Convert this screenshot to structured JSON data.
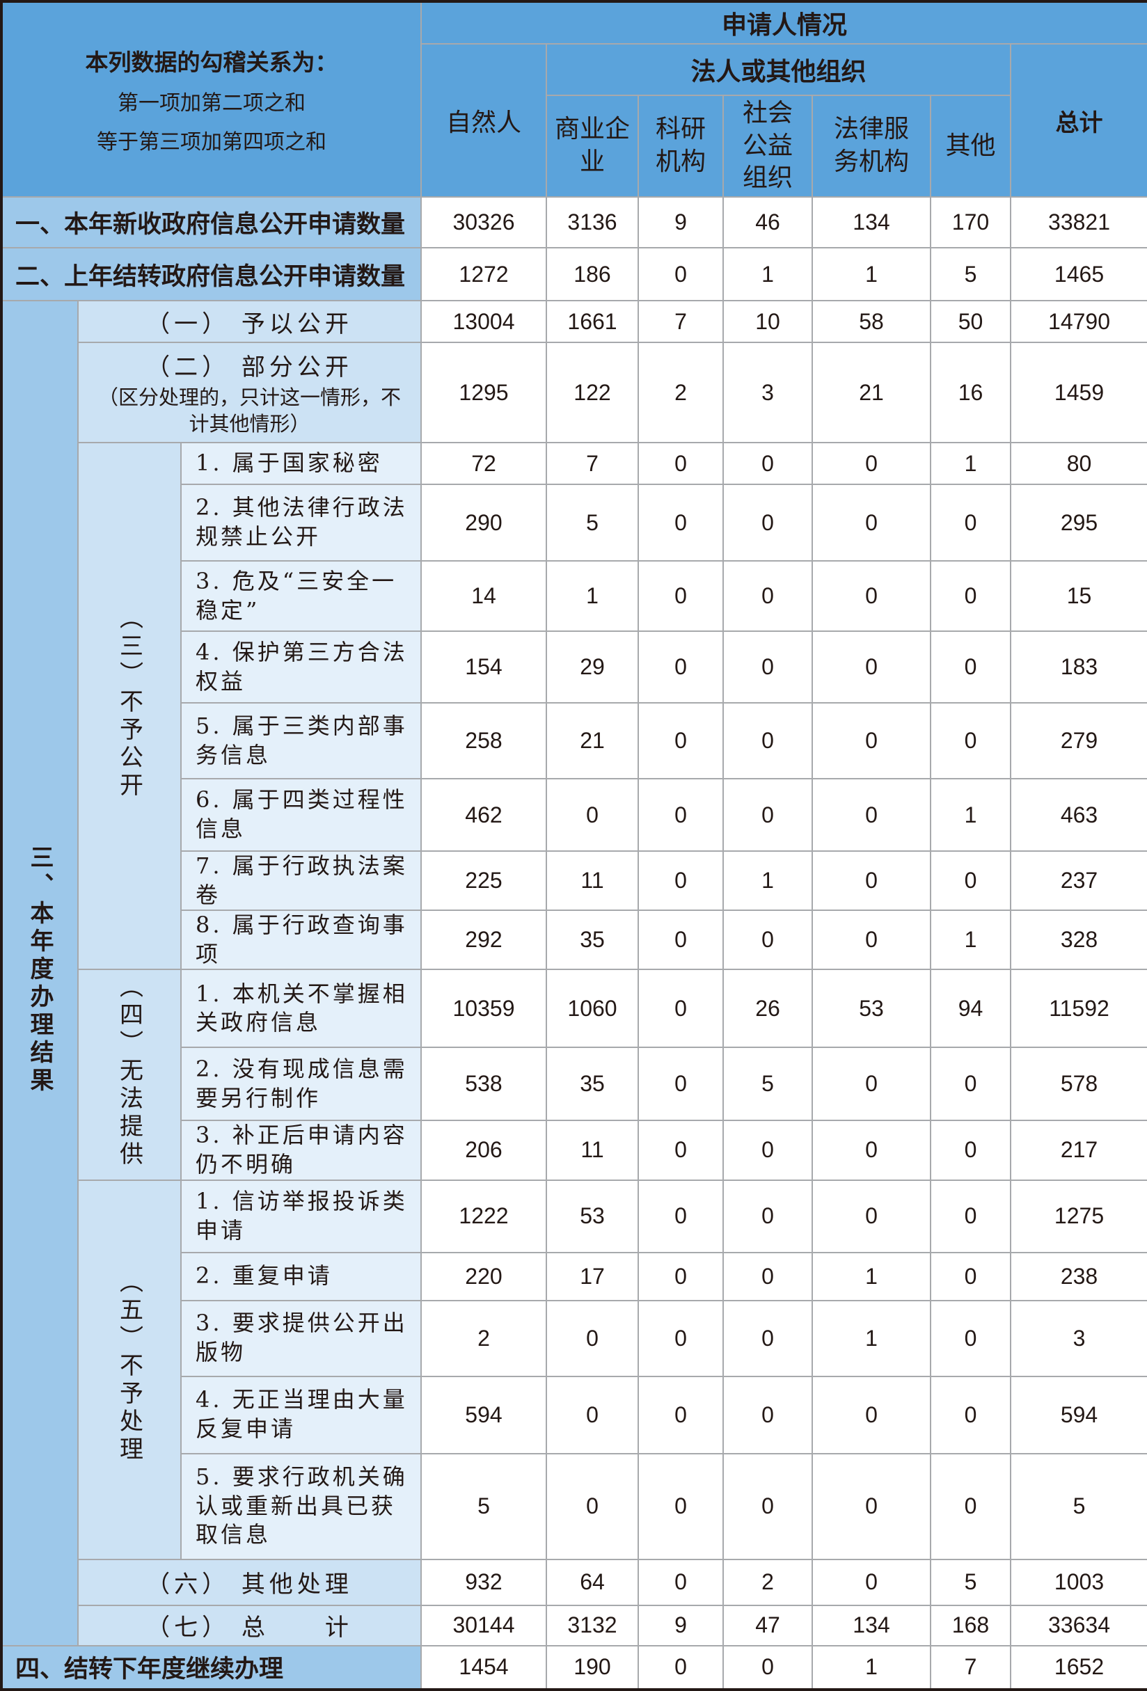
{
  "header": {
    "corner_title": "本列数据的勾稽关系为：",
    "corner_line1": "第一项加第二项之和",
    "corner_line2": "等于第三项加第四项之和",
    "applicant": "申请人情况",
    "natural_person": "自然人",
    "legal_group": "法人或其他组织",
    "total": "总计",
    "orgs": [
      "商业企业",
      "科研机构",
      "社会公益组织",
      "法律服务机构",
      "其他"
    ]
  },
  "groups": {
    "section3": "三、本年度办理结果",
    "not_public": "（三）不予公开",
    "unable": "（四）无法提供",
    "not_processed": "（五）不予处理"
  },
  "rows": [
    {
      "label": "一、本年新收政府信息公开申请数量",
      "values": [
        30326,
        3136,
        9,
        46,
        134,
        170,
        33821
      ]
    },
    {
      "label": "二、上年结转政府信息公开申请数量",
      "values": [
        1272,
        186,
        0,
        1,
        1,
        5,
        1465
      ]
    },
    {
      "label": "（一） 予以公开",
      "values": [
        13004,
        1661,
        7,
        10,
        58,
        50,
        14790
      ]
    },
    {
      "label": "（二） 部分公开",
      "note": "（区分处理的，只计这一情形，不计其他情形）",
      "values": [
        1295,
        122,
        2,
        3,
        21,
        16,
        1459
      ]
    },
    {
      "label": "1. 属于国家秘密",
      "values": [
        72,
        7,
        0,
        0,
        0,
        1,
        80
      ]
    },
    {
      "label": "2. 其他法律行政法规禁止公开",
      "values": [
        290,
        5,
        0,
        0,
        0,
        0,
        295
      ]
    },
    {
      "label": "3. 危及“三安全一稳定”",
      "values": [
        14,
        1,
        0,
        0,
        0,
        0,
        15
      ]
    },
    {
      "label": "4. 保护第三方合法权益",
      "values": [
        154,
        29,
        0,
        0,
        0,
        0,
        183
      ]
    },
    {
      "label": "5. 属于三类内部事务信息",
      "values": [
        258,
        21,
        0,
        0,
        0,
        0,
        279
      ]
    },
    {
      "label": "6. 属于四类过程性信息",
      "values": [
        462,
        0,
        0,
        0,
        0,
        1,
        463
      ]
    },
    {
      "label": "7. 属于行政执法案卷",
      "values": [
        225,
        11,
        0,
        1,
        0,
        0,
        237
      ]
    },
    {
      "label": "8. 属于行政查询事项",
      "values": [
        292,
        35,
        0,
        0,
        0,
        1,
        328
      ]
    },
    {
      "label": "1. 本机关不掌握相关政府信息",
      "values": [
        10359,
        1060,
        0,
        26,
        53,
        94,
        11592
      ]
    },
    {
      "label": "2. 没有现成信息需要另行制作",
      "values": [
        538,
        35,
        0,
        5,
        0,
        0,
        578
      ]
    },
    {
      "label": "3. 补正后申请内容仍不明确",
      "values": [
        206,
        11,
        0,
        0,
        0,
        0,
        217
      ]
    },
    {
      "label": "1. 信访举报投诉类申请",
      "values": [
        1222,
        53,
        0,
        0,
        0,
        0,
        1275
      ]
    },
    {
      "label": "2. 重复申请",
      "values": [
        220,
        17,
        0,
        0,
        1,
        0,
        238
      ]
    },
    {
      "label": "3. 要求提供公开出版物",
      "values": [
        2,
        0,
        0,
        0,
        1,
        0,
        3
      ]
    },
    {
      "label": "4. 无正当理由大量反复申请",
      "values": [
        594,
        0,
        0,
        0,
        0,
        0,
        594
      ]
    },
    {
      "label": "5. 要求行政机关确认或重新出具已获取信息",
      "values": [
        5,
        0,
        0,
        0,
        0,
        0,
        5
      ]
    },
    {
      "label": "（六） 其他处理",
      "values": [
        932,
        64,
        0,
        2,
        0,
        5,
        1003
      ]
    },
    {
      "label": "（七） 总　　计",
      "values": [
        30144,
        3132,
        9,
        47,
        134,
        168,
        33634
      ]
    },
    {
      "label": "四、结转下年度继续办理",
      "values": [
        1454,
        190,
        0,
        0,
        1,
        7,
        1652
      ]
    }
  ],
  "colors": {
    "header": "#5ba3db",
    "section": "#9dc8ea",
    "subsection": "#cce2f4",
    "leaf": "#e4f0fa"
  }
}
